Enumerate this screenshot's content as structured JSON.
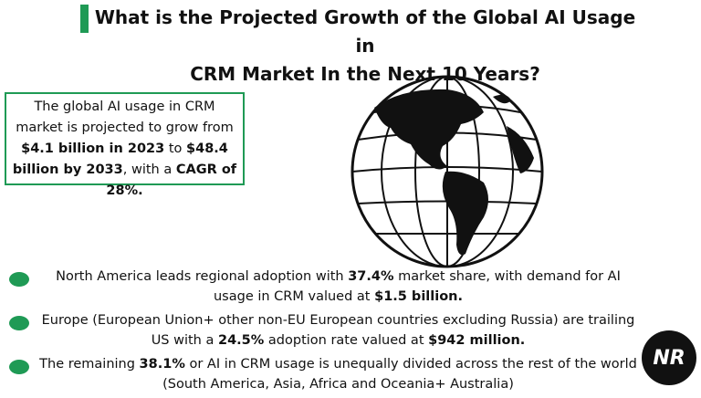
{
  "header": {
    "title_lines": [
      "What is the Projected Growth of the Global AI Usage in",
      "CRM Market In the Next 10 Years?"
    ]
  },
  "summary_box": {
    "runs": [
      {
        "text": "The global AI usage in CRM market is projected to grow from ",
        "bold": false
      },
      {
        "text": "$4.1 billion in 2023",
        "bold": true
      },
      {
        "text": " to ",
        "bold": false
      },
      {
        "text": "$48.4 billion by 2033",
        "bold": true
      },
      {
        "text": ", with a ",
        "bold": false
      },
      {
        "text": "CAGR of 28%.",
        "bold": true
      }
    ]
  },
  "bullets": [
    {
      "runs": [
        {
          "text": "North America leads regional adoption with ",
          "bold": false
        },
        {
          "text": "37.4%",
          "bold": true
        },
        {
          "text": " market share, with demand for AI usage in CRM valued at ",
          "bold": false
        },
        {
          "text": "$1.5 billion.",
          "bold": true
        }
      ]
    },
    {
      "runs": [
        {
          "text": "Europe (European Union+ other non-EU European countries excluding Russia) are trailing US with a ",
          "bold": false
        },
        {
          "text": "24.5%",
          "bold": true
        },
        {
          "text": " adoption rate valued at ",
          "bold": false
        },
        {
          "text": "$942 million.",
          "bold": true
        }
      ]
    },
    {
      "runs": [
        {
          "text": "The remaining ",
          "bold": false
        },
        {
          "text": "38.1%",
          "bold": true
        },
        {
          "text": " or AI in CRM usage is unequally divided across the rest of the world (South America, Asia, Africa and Oceania+ Australia)",
          "bold": false
        }
      ]
    }
  ],
  "logo": {
    "text": "NR"
  }
}
